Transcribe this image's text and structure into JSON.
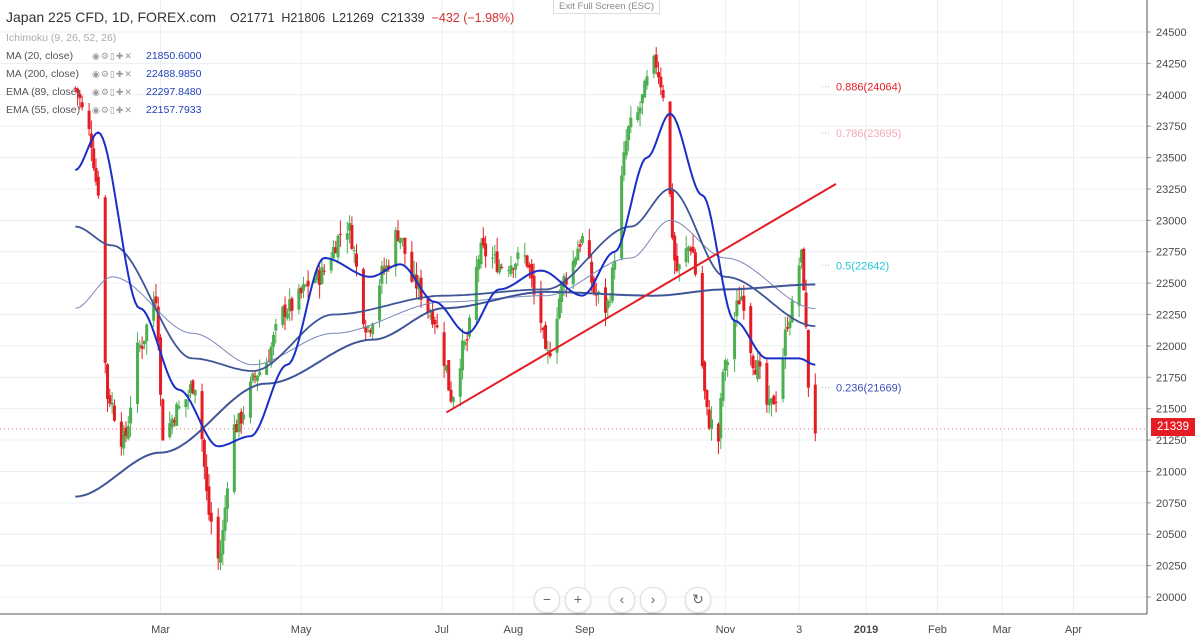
{
  "header": {
    "symbol": "Japan 225 CFD, 1D, FOREX.com",
    "open": "O21771",
    "high": "H21806",
    "low": "L21269",
    "close": "C21339",
    "change": "−432 (−1.98%)"
  },
  "exit_fullscreen": "Exit Full Screen (ESC)",
  "indicators": [
    {
      "name": "Ichimoku (9, 26, 52, 26)",
      "value": "",
      "dim": true
    },
    {
      "name": "MA (20, close)",
      "value": "21850.6000"
    },
    {
      "name": "MA (200, close)",
      "value": "22488.9850"
    },
    {
      "name": "EMA (89, close)",
      "value": "22297.8480"
    },
    {
      "name": "EMA (55, close)",
      "value": "22157.7933"
    }
  ],
  "colors": {
    "up": "#4caf50",
    "down": "#e51c23",
    "ma": "#1a2fc8",
    "ema": "#3f5597",
    "fib_0886": "#e51c23",
    "fib_0786": "#f4a9b5",
    "fib_05": "#26c6da",
    "fib_0236": "#3f51b5",
    "trendline": "#e51c23"
  },
  "current_price": "21339",
  "nav_buttons": [
    "−",
    "+",
    "‹",
    "›",
    "↻"
  ],
  "chart_data": {
    "type": "candlestick",
    "ylim": [
      19900,
      24650
    ],
    "yticks": [
      20000,
      20250,
      20500,
      20750,
      21000,
      21250,
      21500,
      21750,
      22000,
      22250,
      22500,
      22750,
      23000,
      23250,
      23500,
      23750,
      24000,
      24250,
      24500
    ],
    "xticks": [
      "Mar",
      "May",
      "Jul",
      "Aug",
      "Sep",
      "Nov",
      "3",
      "2019",
      "Feb",
      "Mar",
      "Apr"
    ],
    "fib_levels": [
      {
        "label": "0.886(24064)",
        "value": 24064
      },
      {
        "label": "0.786(23695)",
        "value": 23695
      },
      {
        "label": "0.5(22642)",
        "value": 22642
      },
      {
        "label": "0.236(21669)",
        "value": 21669
      }
    ],
    "trendline": {
      "from": [
        "2018-07-03",
        21470
      ],
      "to": [
        "2018-12-19",
        23290
      ]
    },
    "close_anchors": [
      [
        "2018-01-23",
        24050
      ],
      [
        "2018-01-29",
        23700
      ],
      [
        "2018-02-02",
        23250
      ],
      [
        "2018-02-06",
        21600
      ],
      [
        "2018-02-13",
        21250
      ],
      [
        "2018-02-20",
        22000
      ],
      [
        "2018-02-27",
        22400
      ],
      [
        "2018-03-02",
        21300
      ],
      [
        "2018-03-09",
        21500
      ],
      [
        "2018-03-16",
        21700
      ],
      [
        "2018-03-23",
        20600
      ],
      [
        "2018-03-26",
        20300
      ],
      [
        "2018-04-02",
        21350
      ],
      [
        "2018-04-13",
        21800
      ],
      [
        "2018-04-25",
        22300
      ],
      [
        "2018-05-08",
        22550
      ],
      [
        "2018-05-21",
        22950
      ],
      [
        "2018-05-30",
        22150
      ],
      [
        "2018-06-06",
        22600
      ],
      [
        "2018-06-12",
        22900
      ],
      [
        "2018-06-19",
        22500
      ],
      [
        "2018-06-27",
        22250
      ],
      [
        "2018-07-02",
        21900
      ],
      [
        "2018-07-05",
        21600
      ],
      [
        "2018-07-11",
        22000
      ],
      [
        "2018-07-18",
        22750
      ],
      [
        "2018-07-27",
        22650
      ],
      [
        "2018-08-06",
        22700
      ],
      [
        "2018-08-13",
        22200
      ],
      [
        "2018-08-15",
        21900
      ],
      [
        "2018-08-24",
        22550
      ],
      [
        "2018-08-31",
        22850
      ],
      [
        "2018-09-06",
        22400
      ],
      [
        "2018-09-10",
        22300
      ],
      [
        "2018-09-21",
        23750
      ],
      [
        "2018-10-02",
        24250
      ],
      [
        "2018-10-04",
        24100
      ],
      [
        "2018-10-11",
        22600
      ],
      [
        "2018-10-17",
        22800
      ],
      [
        "2018-10-25",
        21400
      ],
      [
        "2018-10-29",
        21250
      ],
      [
        "2018-10-31",
        21800
      ],
      [
        "2018-11-08",
        22400
      ],
      [
        "2018-11-14",
        21850
      ],
      [
        "2018-11-20",
        21500
      ],
      [
        "2018-11-23",
        21600
      ],
      [
        "2018-11-29",
        22250
      ],
      [
        "2018-12-04",
        22700
      ],
      [
        "2018-12-05",
        22500
      ],
      [
        "2018-12-07",
        21700
      ],
      [
        "2018-12-10",
        21339
      ]
    ],
    "ma20_anchors": [
      [
        "2018-01-23",
        23400
      ],
      [
        "2018-02-02",
        23700
      ],
      [
        "2018-02-20",
        22300
      ],
      [
        "2018-03-09",
        21650
      ],
      [
        "2018-03-26",
        21200
      ],
      [
        "2018-04-09",
        21280
      ],
      [
        "2018-04-25",
        21850
      ],
      [
        "2018-05-11",
        22700
      ],
      [
        "2018-05-31",
        22550
      ],
      [
        "2018-06-13",
        22650
      ],
      [
        "2018-06-28",
        22350
      ],
      [
        "2018-07-12",
        22100
      ],
      [
        "2018-07-26",
        22450
      ],
      [
        "2018-08-13",
        22600
      ],
      [
        "2018-08-31",
        22400
      ],
      [
        "2018-09-14",
        22750
      ],
      [
        "2018-09-28",
        23500
      ],
      [
        "2018-10-08",
        23850
      ],
      [
        "2018-10-22",
        23200
      ],
      [
        "2018-11-05",
        22200
      ],
      [
        "2018-11-19",
        21900
      ],
      [
        "2018-12-03",
        21900
      ],
      [
        "2018-12-10",
        21850
      ]
    ],
    "ma200_anchors": [
      [
        "2018-01-23",
        20800
      ],
      [
        "2018-03-01",
        21150
      ],
      [
        "2018-04-16",
        21700
      ],
      [
        "2018-06-01",
        22050
      ],
      [
        "2018-07-02",
        22300
      ],
      [
        "2018-08-15",
        22430
      ],
      [
        "2018-10-01",
        22400
      ],
      [
        "2018-11-01",
        22450
      ],
      [
        "2018-12-10",
        22489
      ]
    ],
    "ema89_anchors": [
      [
        "2018-01-23",
        22300
      ],
      [
        "2018-02-08",
        22550
      ],
      [
        "2018-03-15",
        22100
      ],
      [
        "2018-04-10",
        21850
      ],
      [
        "2018-05-15",
        22100
      ],
      [
        "2018-07-02",
        22350
      ],
      [
        "2018-08-15",
        22400
      ],
      [
        "2018-09-21",
        22700
      ],
      [
        "2018-10-08",
        23000
      ],
      [
        "2018-11-01",
        22700
      ],
      [
        "2018-12-10",
        22298
      ]
    ],
    "ema55_anchors": [
      [
        "2018-01-23",
        22950
      ],
      [
        "2018-02-08",
        22800
      ],
      [
        "2018-03-15",
        21900
      ],
      [
        "2018-04-10",
        21800
      ],
      [
        "2018-05-15",
        22250
      ],
      [
        "2018-07-02",
        22400
      ],
      [
        "2018-08-15",
        22450
      ],
      [
        "2018-09-21",
        22950
      ],
      [
        "2018-10-08",
        23250
      ],
      [
        "2018-11-01",
        22550
      ],
      [
        "2018-12-10",
        22158
      ]
    ]
  }
}
